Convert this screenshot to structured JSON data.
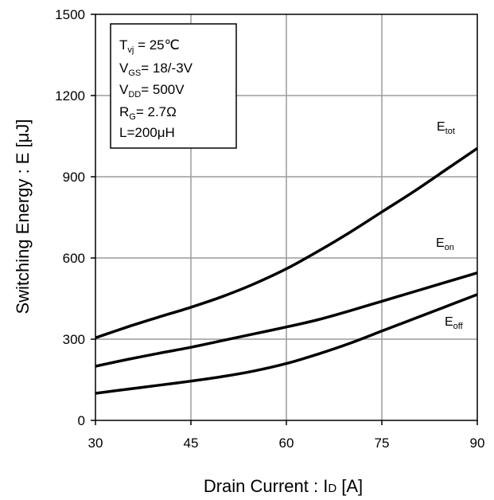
{
  "chart_data": {
    "type": "line",
    "xlabel": "Drain Current : I",
    "xlabel_sub": "D",
    "xlabel_unit": " [A]",
    "ylabel": "Switching Energy : E [μJ]",
    "xlim": [
      30,
      90
    ],
    "ylim": [
      0,
      1500
    ],
    "xticks": [
      30,
      45,
      60,
      75,
      90
    ],
    "yticks": [
      0,
      300,
      600,
      900,
      1200,
      1500
    ],
    "grid": true,
    "conditions": [
      {
        "main": "T",
        "sub": "vj",
        "rest": " = 25℃"
      },
      {
        "main": "V",
        "sub": "GS",
        "rest": "= 18/-3V"
      },
      {
        "main": "V",
        "sub": "DD",
        "rest": "= 500V"
      },
      {
        "main": "R",
        "sub": "G",
        "rest": "= 2.7Ω"
      },
      {
        "main": "L=200μH",
        "sub": "",
        "rest": ""
      }
    ],
    "series": [
      {
        "main": "E",
        "sub": "tot",
        "x": [
          30,
          35,
          40,
          45,
          50,
          55,
          60,
          65,
          70,
          75,
          80,
          85,
          90
        ],
        "y": [
          305,
          345,
          382,
          418,
          458,
          505,
          560,
          625,
          695,
          770,
          845,
          925,
          1005
        ]
      },
      {
        "main": "E",
        "sub": "on",
        "x": [
          30,
          35,
          40,
          45,
          50,
          55,
          60,
          65,
          70,
          75,
          80,
          85,
          90
        ],
        "y": [
          200,
          225,
          248,
          270,
          295,
          320,
          345,
          372,
          405,
          440,
          475,
          510,
          545
        ]
      },
      {
        "main": "E",
        "sub": "off",
        "x": [
          30,
          35,
          40,
          45,
          50,
          55,
          60,
          65,
          70,
          75,
          80,
          85,
          90
        ],
        "y": [
          100,
          115,
          130,
          145,
          162,
          183,
          210,
          245,
          285,
          330,
          375,
          420,
          465
        ]
      }
    ]
  }
}
